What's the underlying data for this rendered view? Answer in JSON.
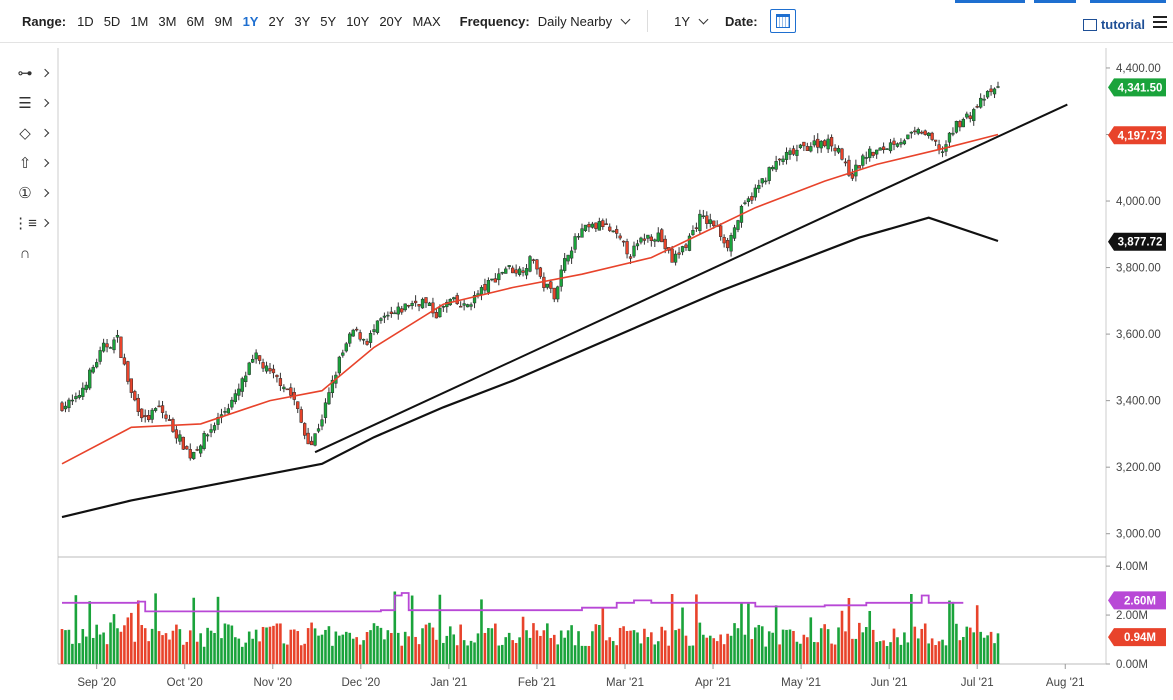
{
  "toolbar": {
    "range_label": "Range:",
    "ranges": [
      "1D",
      "5D",
      "1M",
      "3M",
      "6M",
      "9M",
      "1Y",
      "2Y",
      "3Y",
      "5Y",
      "10Y",
      "20Y",
      "MAX"
    ],
    "active_range": "1Y",
    "frequency_label": "Frequency:",
    "frequency_value": "Daily Nearby",
    "period_value": "1Y",
    "date_label": "Date:",
    "tutorial_label": "tutorial"
  },
  "tools": [
    "crosshair-icon",
    "draw-list-icon",
    "shape-icon",
    "arrow-up-icon",
    "number-one-icon",
    "fibonacci-icon",
    "magnet-icon"
  ],
  "colors": {
    "up": "#1aa33b",
    "down": "#e8432b",
    "ma50": "#e8432b",
    "ma200": "#111111",
    "volume_ma": "#b848d6",
    "last_price_badge": "#1aa33b",
    "ma50_badge": "#e8432b",
    "ma200_badge": "#111111",
    "volume_badge": "#b848d6",
    "volume_last_badge": "#e8432b",
    "accent": "#1e6fd0"
  },
  "chart_data": [
    {
      "type": "candlestick",
      "x_ticks": [
        "Sep '20",
        "Oct '20",
        "Nov '20",
        "Dec '20",
        "Jan '21",
        "Feb '21",
        "Mar '21",
        "Apr '21",
        "May '21",
        "Jun '21",
        "Jul '21",
        "Aug '21"
      ],
      "y_ticks": [
        "3,000.00",
        "3,200.00",
        "3,400.00",
        "3,600.00",
        "3,800.00",
        "4,000.00",
        "4,200.00",
        "4,400.00"
      ],
      "ylim": [
        2930,
        4460
      ],
      "badges": {
        "last_price": "4,341.50",
        "ma50": "4,197.73",
        "ma200": "3,877.72"
      },
      "close_path": [
        [
          0,
          3385
        ],
        [
          4,
          3400
        ],
        [
          8,
          3480
        ],
        [
          12,
          3560
        ],
        [
          16,
          3585
        ],
        [
          20,
          3420
        ],
        [
          24,
          3340
        ],
        [
          28,
          3380
        ],
        [
          33,
          3300
        ],
        [
          37,
          3235
        ],
        [
          42,
          3300
        ],
        [
          46,
          3360
        ],
        [
          50,
          3410
        ],
        [
          54,
          3500
        ],
        [
          56,
          3530
        ],
        [
          60,
          3480
        ],
        [
          64,
          3450
        ],
        [
          67,
          3400
        ],
        [
          70,
          3300
        ],
        [
          72,
          3270
        ],
        [
          75,
          3350
        ],
        [
          80,
          3520
        ],
        [
          84,
          3610
        ],
        [
          88,
          3580
        ],
        [
          92,
          3640
        ],
        [
          96,
          3660
        ],
        [
          100,
          3690
        ],
        [
          104,
          3700
        ],
        [
          108,
          3660
        ],
        [
          112,
          3700
        ],
        [
          116,
          3680
        ],
        [
          120,
          3720
        ],
        [
          124,
          3760
        ],
        [
          128,
          3800
        ],
        [
          132,
          3790
        ],
        [
          136,
          3830
        ],
        [
          138,
          3760
        ],
        [
          142,
          3720
        ],
        [
          146,
          3850
        ],
        [
          150,
          3910
        ],
        [
          156,
          3930
        ],
        [
          160,
          3890
        ],
        [
          164,
          3840
        ],
        [
          168,
          3890
        ],
        [
          172,
          3900
        ],
        [
          176,
          3820
        ],
        [
          180,
          3870
        ],
        [
          184,
          3950
        ],
        [
          188,
          3930
        ],
        [
          192,
          3870
        ],
        [
          196,
          3970
        ],
        [
          200,
          4030
        ],
        [
          204,
          4090
        ],
        [
          208,
          4130
        ],
        [
          212,
          4150
        ],
        [
          216,
          4170
        ],
        [
          220,
          4180
        ],
        [
          224,
          4160
        ],
        [
          226,
          4100
        ],
        [
          228,
          4080
        ],
        [
          232,
          4140
        ],
        [
          236,
          4150
        ],
        [
          240,
          4180
        ],
        [
          244,
          4190
        ],
        [
          248,
          4210
        ],
        [
          252,
          4170
        ],
        [
          254,
          4150
        ],
        [
          258,
          4230
        ],
        [
          262,
          4260
        ],
        [
          266,
          4310
        ],
        [
          270,
          4340
        ]
      ],
      "ma50": [
        [
          0,
          3210
        ],
        [
          20,
          3320
        ],
        [
          40,
          3330
        ],
        [
          60,
          3400
        ],
        [
          75,
          3430
        ],
        [
          90,
          3560
        ],
        [
          110,
          3690
        ],
        [
          130,
          3740
        ],
        [
          150,
          3780
        ],
        [
          170,
          3830
        ],
        [
          186,
          3910
        ],
        [
          200,
          3980
        ],
        [
          220,
          4060
        ],
        [
          235,
          4110
        ],
        [
          255,
          4160
        ],
        [
          270,
          4200
        ]
      ],
      "ma200": [
        [
          0,
          3050
        ],
        [
          20,
          3100
        ],
        [
          40,
          3140
        ],
        [
          60,
          3180
        ],
        [
          75,
          3210
        ],
        [
          90,
          3290
        ],
        [
          110,
          3380
        ],
        [
          130,
          3460
        ],
        [
          150,
          3550
        ],
        [
          170,
          3640
        ],
        [
          190,
          3730
        ],
        [
          210,
          3810
        ],
        [
          230,
          3890
        ],
        [
          250,
          3950
        ],
        [
          270,
          3880
        ]
      ],
      "trendline": {
        "start": [
          73,
          3245
        ],
        "end": [
          290,
          4290
        ]
      }
    },
    {
      "type": "bar",
      "name": "volume",
      "y_ticks": [
        "0.00M",
        "2.00M",
        "4.00M"
      ],
      "ylim": [
        0,
        4.25
      ],
      "badges": {
        "volume_ma": "2.60M",
        "last_volume": "0.94M"
      },
      "volume_ma_levels": [
        [
          0,
          2.5
        ],
        [
          22,
          2.55
        ],
        [
          24,
          2.15
        ],
        [
          80,
          2.15
        ],
        [
          92,
          2.2
        ],
        [
          96,
          2.8
        ],
        [
          98,
          2.9
        ],
        [
          100,
          2.2
        ],
        [
          150,
          2.3
        ],
        [
          160,
          2.5
        ],
        [
          165,
          2.6
        ],
        [
          170,
          2.5
        ],
        [
          200,
          2.35
        ],
        [
          220,
          2.4
        ],
        [
          232,
          2.5
        ],
        [
          248,
          2.8
        ],
        [
          250,
          2.5
        ],
        [
          260,
          2.5
        ]
      ]
    }
  ]
}
